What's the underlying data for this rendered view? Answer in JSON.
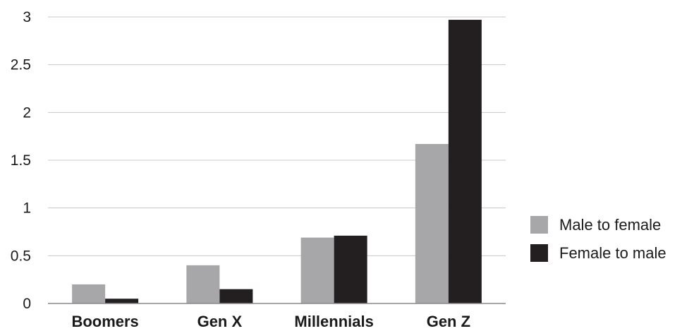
{
  "chart_data": {
    "type": "bar",
    "title": "",
    "xlabel": "",
    "ylabel": "",
    "categories": [
      "Boomers",
      "Gen X",
      "Millennials",
      "Gen Z"
    ],
    "series": [
      {
        "name": "Male to female",
        "color": "#a7a7aa",
        "values": [
          0.2,
          0.4,
          0.69,
          1.67
        ]
      },
      {
        "name": "Female to male",
        "color": "#231f20",
        "values": [
          0.05,
          0.15,
          0.71,
          2.97
        ]
      }
    ],
    "ylim": [
      0,
      3
    ],
    "yticks": [
      0,
      0.5,
      1,
      1.5,
      2,
      2.5,
      3
    ],
    "ytick_labels": [
      "0",
      "0.5",
      "1",
      "1.5",
      "2",
      "2.5",
      "3"
    ],
    "grid": true,
    "legend": "right"
  }
}
